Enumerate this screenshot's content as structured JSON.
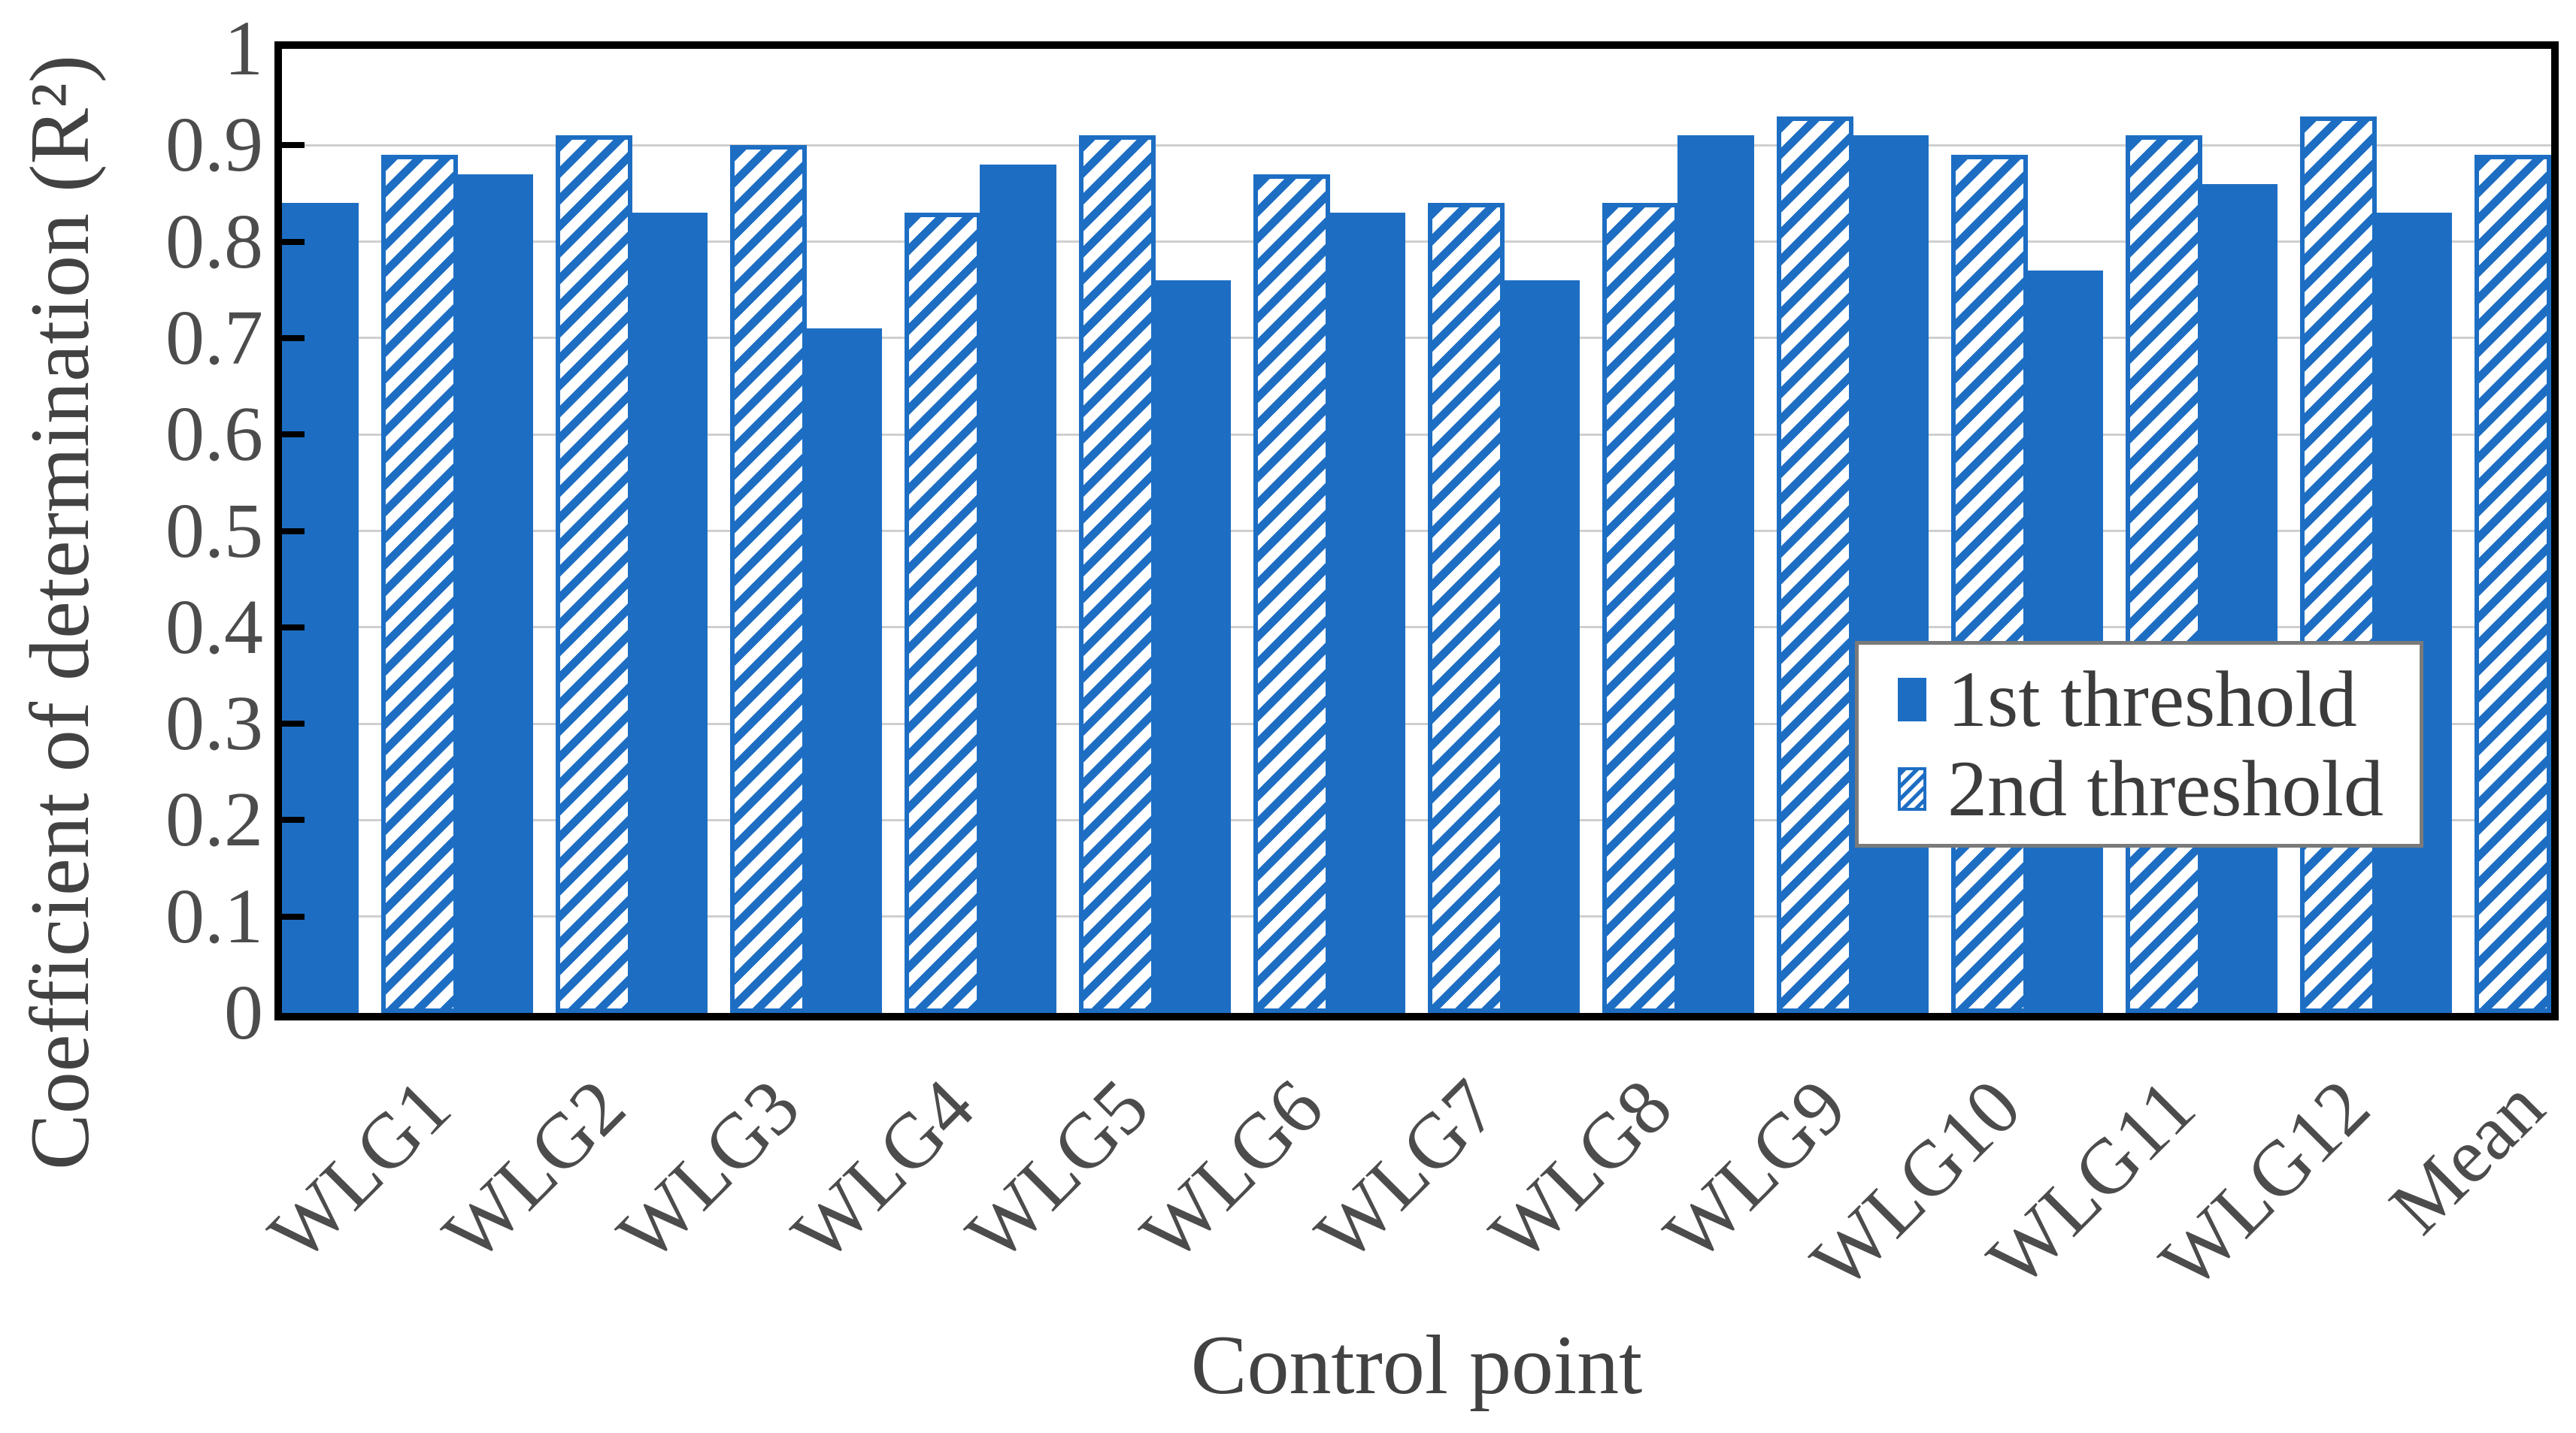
{
  "colors": {
    "accent_blue": "#1d6ec3",
    "gridline": "#cfcfcf",
    "axis_frame": "#000000",
    "text_gray": "#4c4c4c",
    "legend_border": "#7a7a7a"
  },
  "chart_data": {
    "type": "bar",
    "title": "",
    "xlabel": "Control point",
    "ylabel": "Coefficient of determination (R²)",
    "categories": [
      "WLG1",
      "WLG2",
      "WLG3",
      "WLG4",
      "WLG5",
      "WLG6",
      "WLG7",
      "WLG8",
      "WLG9",
      "WLG10",
      "WLG11",
      "WLG12",
      "Mean"
    ],
    "series": [
      {
        "name": "1st threshold",
        "style": "solid",
        "color": "#1d6ec3",
        "values": [
          0.84,
          0.87,
          0.83,
          0.71,
          0.88,
          0.76,
          0.83,
          0.76,
          0.91,
          0.91,
          0.77,
          0.86,
          0.83
        ]
      },
      {
        "name": "2nd threshold",
        "style": "diagonal-hatch",
        "color": "#1d6ec3",
        "values": [
          0.89,
          0.91,
          0.9,
          0.83,
          0.91,
          0.87,
          0.84,
          0.84,
          0.93,
          0.89,
          0.91,
          0.93,
          0.89
        ]
      }
    ],
    "ylim": [
      0,
      1
    ],
    "ytick_labels": [
      "0",
      "0.1",
      "0.2",
      "0.3",
      "0.4",
      "0.5",
      "0.6",
      "0.7",
      "0.8",
      "0.9",
      "1"
    ],
    "grid": "horizontal",
    "legend_position": "inside-right"
  }
}
